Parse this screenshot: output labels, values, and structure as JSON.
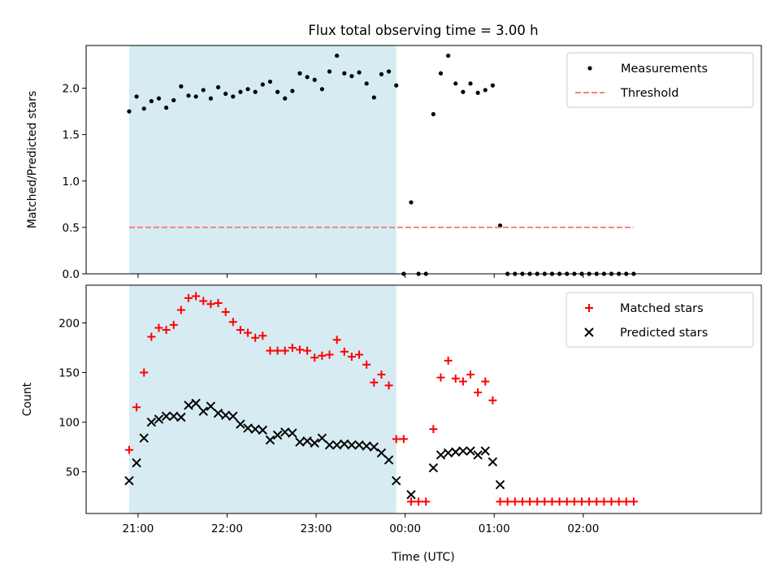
{
  "chart_data": {
    "title": "Flux total observing time = 3.00 h",
    "x_unit": "minutes",
    "xlim": [
      -35,
      420
    ],
    "xticks": [
      {
        "value": 0,
        "label": "21:00"
      },
      {
        "value": 60,
        "label": "22:00"
      },
      {
        "value": 120,
        "label": "23:00"
      },
      {
        "value": 180,
        "label": "00:00"
      },
      {
        "value": 240,
        "label": "01:00"
      },
      {
        "value": 300,
        "label": "02:00"
      }
    ],
    "xlabel": "Time (UTC)",
    "shaded_span": {
      "start": -6,
      "end": 174,
      "color": "#add8e6"
    },
    "panels": [
      {
        "type": "scatter",
        "ylabel": "Matched/Predicted stars",
        "ylim": [
          0,
          2.46
        ],
        "yticks": [
          0.0,
          0.5,
          1.0,
          1.5,
          2.0
        ],
        "ytick_labels": [
          "0.0",
          "0.5",
          "1.0",
          "1.5",
          "2.0"
        ],
        "legend_position": "top-right",
        "series": [
          {
            "name": "Measurements",
            "marker": "dot",
            "color": "#000000",
            "points": [
              [
                -6,
                1.75
              ],
              [
                -1,
                1.91
              ],
              [
                4,
                1.78
              ],
              [
                9,
                1.86
              ],
              [
                14,
                1.89
              ],
              [
                19,
                1.79
              ],
              [
                24,
                1.87
              ],
              [
                29,
                2.02
              ],
              [
                34,
                1.92
              ],
              [
                39,
                1.91
              ],
              [
                44,
                1.98
              ],
              [
                49,
                1.89
              ],
              [
                54,
                2.01
              ],
              [
                59,
                1.94
              ],
              [
                64,
                1.91
              ],
              [
                69,
                1.96
              ],
              [
                74,
                1.99
              ],
              [
                79,
                1.96
              ],
              [
                84,
                2.04
              ],
              [
                89,
                2.07
              ],
              [
                94,
                1.96
              ],
              [
                99,
                1.89
              ],
              [
                104,
                1.97
              ],
              [
                109,
                2.16
              ],
              [
                114,
                2.12
              ],
              [
                119,
                2.09
              ],
              [
                124,
                1.99
              ],
              [
                129,
                2.18
              ],
              [
                134,
                2.35
              ],
              [
                139,
                2.16
              ],
              [
                144,
                2.13
              ],
              [
                149,
                2.17
              ],
              [
                154,
                2.05
              ],
              [
                159,
                1.9
              ],
              [
                164,
                2.15
              ],
              [
                169,
                2.18
              ],
              [
                174,
                2.03
              ],
              [
                179,
                0.0
              ],
              [
                184,
                0.77
              ],
              [
                189,
                0.0
              ],
              [
                194,
                0.0
              ],
              [
                199,
                1.72
              ],
              [
                204,
                2.16
              ],
              [
                209,
                2.35
              ],
              [
                214,
                2.05
              ],
              [
                219,
                1.96
              ],
              [
                224,
                2.05
              ],
              [
                229,
                1.95
              ],
              [
                234,
                1.98
              ],
              [
                239,
                2.03
              ],
              [
                244,
                0.52
              ],
              [
                249,
                0.0
              ],
              [
                254,
                0.0
              ],
              [
                259,
                0.0
              ],
              [
                264,
                0.0
              ],
              [
                269,
                0.0
              ],
              [
                274,
                0.0
              ],
              [
                279,
                0.0
              ],
              [
                284,
                0.0
              ],
              [
                289,
                0.0
              ],
              [
                294,
                0.0
              ],
              [
                299,
                0.0
              ],
              [
                304,
                0.0
              ],
              [
                309,
                0.0
              ],
              [
                314,
                0.0
              ],
              [
                319,
                0.0
              ],
              [
                324,
                0.0
              ],
              [
                329,
                0.0
              ],
              [
                334,
                0.0
              ]
            ]
          },
          {
            "name": "Threshold",
            "marker": "dashed-line",
            "color": "#ff7f7f",
            "y": 0.5,
            "x_range": [
              -6,
              334
            ]
          }
        ]
      },
      {
        "type": "scatter",
        "ylabel": "Count",
        "ylim": [
          8,
          238
        ],
        "yticks": [
          50,
          100,
          150,
          200
        ],
        "ytick_labels": [
          "50",
          "100",
          "150",
          "200"
        ],
        "legend_position": "top-right",
        "series": [
          {
            "name": "Matched stars",
            "marker": "plus",
            "color": "#ff0000",
            "points": [
              [
                -6,
                72
              ],
              [
                -1,
                115
              ],
              [
                4,
                150
              ],
              [
                9,
                186
              ],
              [
                14,
                195
              ],
              [
                19,
                193
              ],
              [
                24,
                198
              ],
              [
                29,
                213
              ],
              [
                34,
                225
              ],
              [
                39,
                227
              ],
              [
                44,
                222
              ],
              [
                49,
                219
              ],
              [
                54,
                220
              ],
              [
                59,
                211
              ],
              [
                64,
                201
              ],
              [
                69,
                193
              ],
              [
                74,
                190
              ],
              [
                79,
                185
              ],
              [
                84,
                187
              ],
              [
                89,
                172
              ],
              [
                94,
                172
              ],
              [
                99,
                172
              ],
              [
                104,
                175
              ],
              [
                109,
                173
              ],
              [
                114,
                172
              ],
              [
                119,
                165
              ],
              [
                124,
                167
              ],
              [
                129,
                168
              ],
              [
                134,
                183
              ],
              [
                139,
                171
              ],
              [
                144,
                166
              ],
              [
                149,
                168
              ],
              [
                154,
                158
              ],
              [
                159,
                140
              ],
              [
                164,
                148
              ],
              [
                169,
                137
              ],
              [
                174,
                83
              ],
              [
                179,
                83
              ],
              [
                184,
                20
              ],
              [
                189,
                20
              ],
              [
                194,
                20
              ],
              [
                199,
                93
              ],
              [
                204,
                145
              ],
              [
                209,
                162
              ],
              [
                214,
                144
              ],
              [
                219,
                141
              ],
              [
                224,
                148
              ],
              [
                229,
                130
              ],
              [
                234,
                141
              ],
              [
                239,
                122
              ],
              [
                244,
                20
              ],
              [
                249,
                20
              ],
              [
                254,
                20
              ],
              [
                259,
                20
              ],
              [
                264,
                20
              ],
              [
                269,
                20
              ],
              [
                274,
                20
              ],
              [
                279,
                20
              ],
              [
                284,
                20
              ],
              [
                289,
                20
              ],
              [
                294,
                20
              ],
              [
                299,
                20
              ],
              [
                304,
                20
              ],
              [
                309,
                20
              ],
              [
                314,
                20
              ],
              [
                319,
                20
              ],
              [
                324,
                20
              ],
              [
                329,
                20
              ],
              [
                334,
                20
              ]
            ]
          },
          {
            "name": "Predicted stars",
            "marker": "x",
            "color": "#000000",
            "points": [
              [
                -6,
                41
              ],
              [
                -1,
                59
              ],
              [
                4,
                84
              ],
              [
                9,
                100
              ],
              [
                14,
                103
              ],
              [
                19,
                106
              ],
              [
                24,
                106
              ],
              [
                29,
                105
              ],
              [
                34,
                117
              ],
              [
                39,
                119
              ],
              [
                44,
                111
              ],
              [
                49,
                116
              ],
              [
                54,
                109
              ],
              [
                59,
                107
              ],
              [
                64,
                106
              ],
              [
                69,
                98
              ],
              [
                74,
                94
              ],
              [
                79,
                93
              ],
              [
                84,
                92
              ],
              [
                89,
                82
              ],
              [
                94,
                87
              ],
              [
                99,
                90
              ],
              [
                104,
                89
              ],
              [
                109,
                80
              ],
              [
                114,
                81
              ],
              [
                119,
                79
              ],
              [
                124,
                84
              ],
              [
                129,
                77
              ],
              [
                134,
                77
              ],
              [
                139,
                78
              ],
              [
                144,
                77
              ],
              [
                149,
                77
              ],
              [
                154,
                76
              ],
              [
                159,
                75
              ],
              [
                164,
                69
              ],
              [
                169,
                62
              ],
              [
                174,
                41
              ],
              [
                184,
                27
              ],
              [
                199,
                54
              ],
              [
                204,
                67
              ],
              [
                209,
                69
              ],
              [
                214,
                70
              ],
              [
                219,
                71
              ],
              [
                224,
                71
              ],
              [
                229,
                67
              ],
              [
                234,
                71
              ],
              [
                239,
                60
              ],
              [
                244,
                37
              ]
            ]
          }
        ]
      }
    ]
  }
}
